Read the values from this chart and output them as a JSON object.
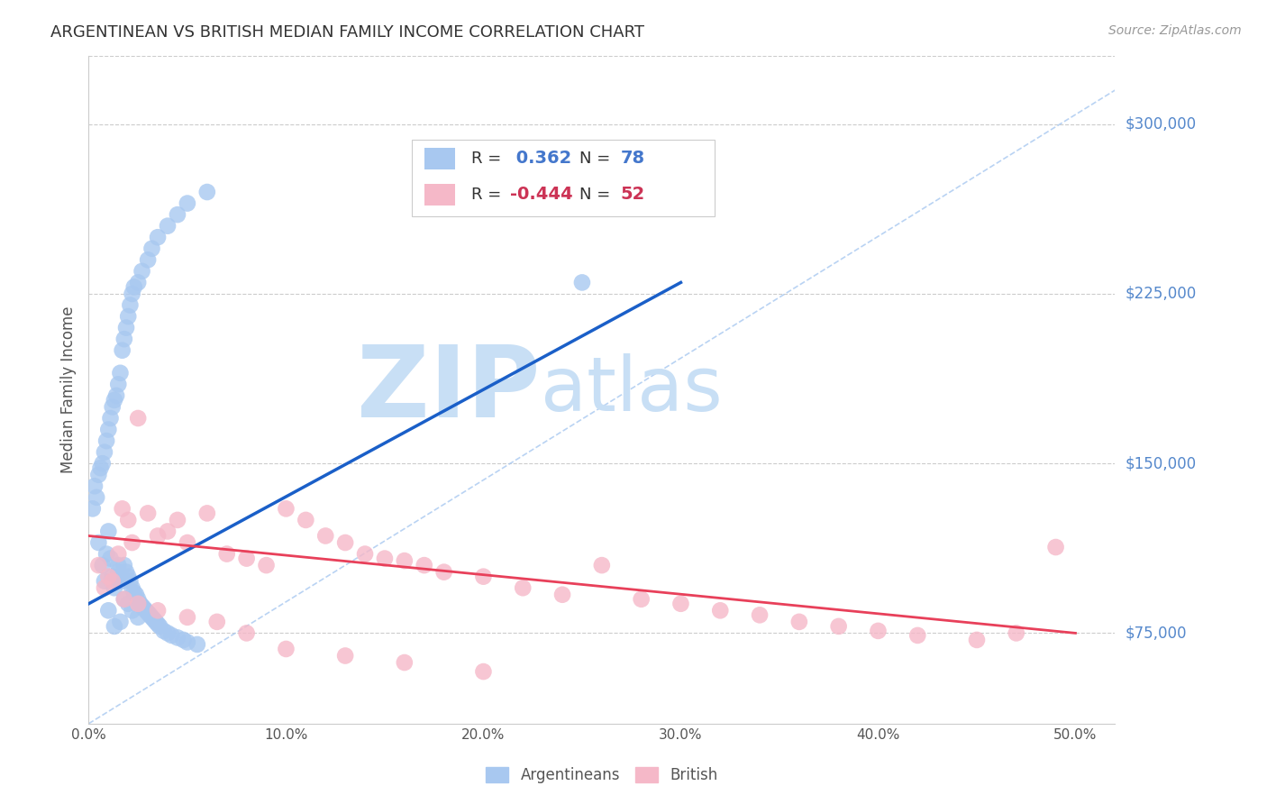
{
  "title": "ARGENTINEAN VS BRITISH MEDIAN FAMILY INCOME CORRELATION CHART",
  "source": "Source: ZipAtlas.com",
  "xlabel_ticks": [
    "0.0%",
    "10.0%",
    "20.0%",
    "30.0%",
    "40.0%",
    "50.0%"
  ],
  "xlabel_vals": [
    0.0,
    0.1,
    0.2,
    0.3,
    0.4,
    0.5
  ],
  "ylabel_vals": [
    75000,
    150000,
    225000,
    300000
  ],
  "ylabel_labels": [
    "$75,000",
    "$150,000",
    "$225,000",
    "$300,000"
  ],
  "xlim": [
    0.0,
    0.52
  ],
  "ylim": [
    35000,
    330000
  ],
  "argentinean_color": "#a8c8f0",
  "british_color": "#f5b8c8",
  "argentinean_line_color": "#1a5fc8",
  "british_line_color": "#e8405a",
  "diagonal_color": "#a8c8f0",
  "r_arg": 0.362,
  "n_arg": 78,
  "r_brit": -0.444,
  "n_brit": 52,
  "watermark_zip": "ZIP",
  "watermark_atlas": "atlas",
  "watermark_color": "#c8dff5",
  "legend_label_arg": "Argentineans",
  "legend_label_brit": "British",
  "ylabel": "Median Family Income",
  "background_color": "#ffffff",
  "grid_color": "#cccccc",
  "arg_scatter_x": [
    0.005,
    0.007,
    0.008,
    0.009,
    0.01,
    0.01,
    0.011,
    0.012,
    0.013,
    0.013,
    0.014,
    0.015,
    0.015,
    0.016,
    0.016,
    0.017,
    0.018,
    0.018,
    0.019,
    0.02,
    0.02,
    0.021,
    0.022,
    0.022,
    0.023,
    0.024,
    0.025,
    0.025,
    0.026,
    0.027,
    0.028,
    0.029,
    0.03,
    0.031,
    0.032,
    0.033,
    0.034,
    0.035,
    0.036,
    0.038,
    0.04,
    0.042,
    0.045,
    0.048,
    0.05,
    0.055,
    0.002,
    0.003,
    0.004,
    0.005,
    0.006,
    0.007,
    0.008,
    0.009,
    0.01,
    0.011,
    0.012,
    0.013,
    0.014,
    0.015,
    0.016,
    0.017,
    0.018,
    0.019,
    0.02,
    0.021,
    0.022,
    0.023,
    0.025,
    0.027,
    0.03,
    0.032,
    0.035,
    0.04,
    0.045,
    0.05,
    0.06,
    0.25
  ],
  "arg_scatter_y": [
    115000,
    105000,
    98000,
    110000,
    120000,
    85000,
    108000,
    100000,
    95000,
    78000,
    98000,
    105000,
    102000,
    100000,
    80000,
    98000,
    105000,
    90000,
    102000,
    100000,
    88000,
    98000,
    95000,
    85000,
    93000,
    92000,
    90000,
    82000,
    88000,
    87000,
    86000,
    85000,
    84000,
    83000,
    82000,
    81000,
    80000,
    79000,
    78000,
    76000,
    75000,
    74000,
    73000,
    72000,
    71000,
    70000,
    130000,
    140000,
    135000,
    145000,
    148000,
    150000,
    155000,
    160000,
    165000,
    170000,
    175000,
    178000,
    180000,
    185000,
    190000,
    200000,
    205000,
    210000,
    215000,
    220000,
    225000,
    228000,
    230000,
    235000,
    240000,
    245000,
    250000,
    255000,
    260000,
    265000,
    270000,
    230000
  ],
  "brit_scatter_x": [
    0.005,
    0.008,
    0.01,
    0.012,
    0.015,
    0.017,
    0.02,
    0.022,
    0.025,
    0.03,
    0.035,
    0.04,
    0.045,
    0.05,
    0.06,
    0.07,
    0.08,
    0.09,
    0.1,
    0.11,
    0.12,
    0.13,
    0.14,
    0.15,
    0.16,
    0.17,
    0.18,
    0.2,
    0.22,
    0.24,
    0.26,
    0.28,
    0.3,
    0.32,
    0.34,
    0.36,
    0.38,
    0.4,
    0.42,
    0.45,
    0.47,
    0.49,
    0.018,
    0.025,
    0.035,
    0.05,
    0.065,
    0.08,
    0.1,
    0.13,
    0.16,
    0.2
  ],
  "brit_scatter_y": [
    105000,
    95000,
    100000,
    98000,
    110000,
    130000,
    125000,
    115000,
    170000,
    128000,
    118000,
    120000,
    125000,
    115000,
    128000,
    110000,
    108000,
    105000,
    130000,
    125000,
    118000,
    115000,
    110000,
    108000,
    107000,
    105000,
    102000,
    100000,
    95000,
    92000,
    105000,
    90000,
    88000,
    85000,
    83000,
    80000,
    78000,
    76000,
    74000,
    72000,
    75000,
    113000,
    90000,
    88000,
    85000,
    82000,
    80000,
    75000,
    68000,
    65000,
    62000,
    58000
  ],
  "arg_line_x": [
    0.0,
    0.3
  ],
  "arg_line_y": [
    88000,
    230000
  ],
  "brit_line_x": [
    0.0,
    0.5
  ],
  "brit_line_y": [
    118000,
    75000
  ],
  "diag_line_x": [
    0.0,
    0.52
  ],
  "diag_line_y": [
    35000,
    315000
  ]
}
